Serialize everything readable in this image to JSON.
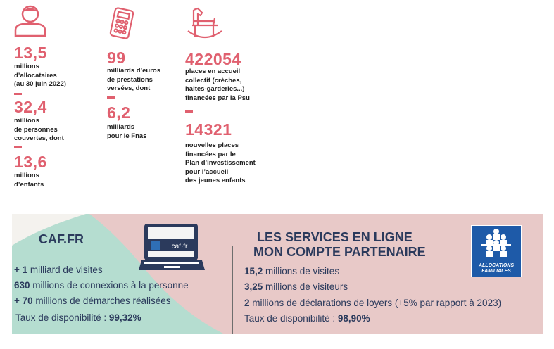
{
  "stats": {
    "col1": [
      {
        "value": "13,5",
        "text": "millions\nd’allocataires\n(au 30 juin 2022)"
      },
      {
        "value": "32,4",
        "text": "millions\nde personnes\ncouvertes, dont"
      },
      {
        "value": "13,6",
        "text": "millions\nd’enfants"
      }
    ],
    "col2": [
      {
        "value": "99",
        "text": "milliards d’euros\nde prestations\nversées, dont"
      },
      {
        "value": "6,2",
        "text": "milliards\npour le Fnas"
      }
    ],
    "col3": [
      {
        "value": "422054",
        "text": "places en accueil\ncollectif (crèches,\nhaltes-garderies...)\nfinancées par la Psu"
      },
      {
        "value": "14321",
        "text": "nouvelles places\nfinancées par le\nPlan d’investissement\npour l’accueil\ndes jeunes enfants"
      }
    ]
  },
  "caf": {
    "title": "CAF.FR",
    "laptop_text": "caf·fr",
    "lines": [
      {
        "b": "+ 1",
        "t": " milliard de visites"
      },
      {
        "b": "630",
        "t": " millions de connexions à la personne"
      },
      {
        "b": "+ 70",
        "t": " millions de démarches réalisées"
      },
      {
        "t": "Taux de disponibilité : ",
        "b2": "99,32%"
      }
    ]
  },
  "services": {
    "title1": "LES SERVICES EN LIGNE",
    "title2": "MON COMPTE PARTENAIRE",
    "logo_text1": "ALLOCATIONS",
    "logo_text2": "FAMILIALES",
    "lines": [
      {
        "b": "15,2",
        "t": " millions de visites"
      },
      {
        "b": "3,25",
        "t": " millions de visiteurs"
      },
      {
        "b": "2",
        "t": " millions de déclarations de loyers (+5% par rapport à 2023)"
      },
      {
        "t": "Taux de disponibilité : ",
        "b2": "98,90%"
      }
    ]
  },
  "colors": {
    "accent": "#e0606f",
    "navy": "#2b3a5c",
    "pink": "#e8c9c8",
    "teal": "#b5ddd0"
  }
}
